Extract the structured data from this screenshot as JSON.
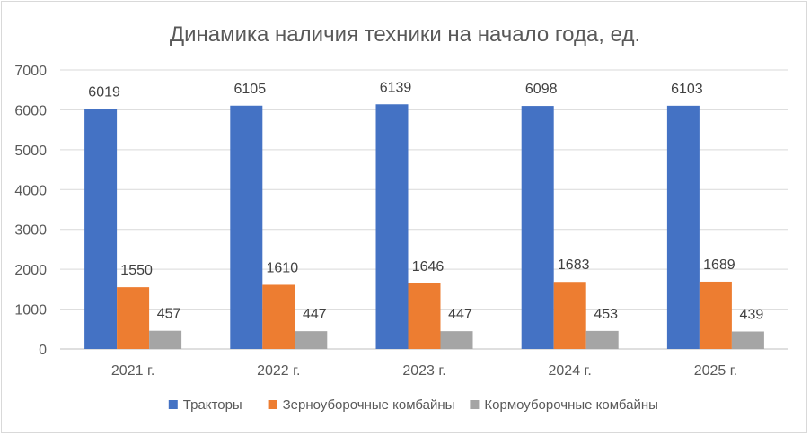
{
  "chart_data": {
    "type": "bar",
    "title": "Динамика наличия техники на начало года, ед.",
    "categories": [
      "2021 г.",
      "2022 г.",
      "2023 г.",
      "2024 г.",
      "2025 г."
    ],
    "series": [
      {
        "name": "Тракторы",
        "values": [
          6019,
          6105,
          6139,
          6098,
          6103
        ],
        "color": "#4472C4"
      },
      {
        "name": "Зерноуборочные комбайны",
        "values": [
          1550,
          1610,
          1646,
          1683,
          1689
        ],
        "color": "#ED7D31"
      },
      {
        "name": "Кормоуборочные комбайны",
        "values": [
          457,
          447,
          447,
          453,
          439
        ],
        "color": "#A5A5A5"
      }
    ],
    "ylim": [
      0,
      7000
    ],
    "yticks": [
      0,
      1000,
      2000,
      3000,
      4000,
      5000,
      6000,
      7000
    ],
    "grid": true,
    "legend": "bottom",
    "xlabel": "",
    "ylabel": ""
  }
}
